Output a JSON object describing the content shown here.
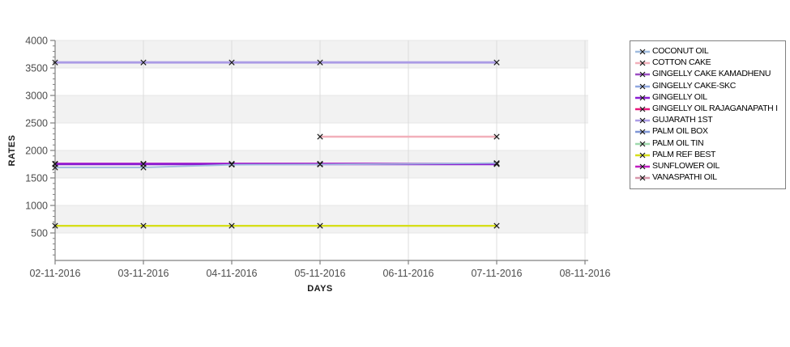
{
  "page": {
    "background": "#ffffff"
  },
  "chart_data": {
    "type": "line",
    "title": "",
    "xlabel": "DAYS",
    "ylabel": "RATES",
    "x_tick_labels": [
      "02-11-2016",
      "03-11-2016",
      "04-11-2016",
      "05-11-2016",
      "06-11-2016",
      "07-11-2016",
      "08-11-2016"
    ],
    "y_tick_labels": [
      "500",
      "1000",
      "1500",
      "2000",
      "2500",
      "3000",
      "3500",
      "4000"
    ],
    "ylim": [
      0,
      4000
    ],
    "y_major_step": 500,
    "y_minor_step": 100,
    "grid": "vertical day gridlines, alternating horizontal gray bands every 500",
    "band_fill": "#f2f2f2",
    "gridline_color": "#dcdcdc",
    "axis_color": "#808080",
    "tick_label_color": "#4d4d4d",
    "marker": "black-x",
    "legend_position": "right",
    "series": [
      {
        "name": "COCONUT OIL",
        "color": "#a0bcdf",
        "x": [
          "02-11-2016",
          "03-11-2016",
          "04-11-2016",
          "05-11-2016",
          "07-11-2016"
        ],
        "values": [
          1690,
          1690,
          1740,
          1745,
          1770
        ],
        "visible": true
      },
      {
        "name": "COTTON CAKE",
        "color": "#f2b0ba",
        "x": [
          "05-11-2016",
          "07-11-2016"
        ],
        "values": [
          2250,
          2250
        ],
        "visible": true
      },
      {
        "name": "GINGELLY CAKE KAMADHENU",
        "color": "#9b4ec2",
        "x": [],
        "values": null,
        "visible": false
      },
      {
        "name": "GINGELLY CAKE-SKC",
        "color": "#8fa7e0",
        "x": [],
        "values": null,
        "visible": false
      },
      {
        "name": "GINGELLY OIL",
        "color": "#8a1ed2",
        "x": [
          "02-11-2016",
          "03-11-2016",
          "04-11-2016",
          "05-11-2016",
          "07-11-2016"
        ],
        "values": [
          1750,
          1750,
          1750,
          1750,
          1750
        ],
        "visible": true
      },
      {
        "name": "GINGELLY OIL RAJAGANAPATH I",
        "color": "#e8197c",
        "x": [],
        "values": null,
        "visible": false
      },
      {
        "name": "GUJARATH 1ST",
        "color": "#ab9ce6",
        "x": [
          "02-11-2016",
          "03-11-2016",
          "04-11-2016",
          "05-11-2016",
          "07-11-2016"
        ],
        "values": [
          3600,
          3600,
          3600,
          3600,
          3600
        ],
        "visible": true
      },
      {
        "name": "PALM OIL BOX",
        "color": "#7f96d6",
        "x": [],
        "values": null,
        "visible": false
      },
      {
        "name": "PALM OIL TIN",
        "color": "#9fd9ad",
        "x": [],
        "values": null,
        "visible": false
      },
      {
        "name": "PALM REF BEST",
        "color": "#d6de1a",
        "x": [
          "02-11-2016",
          "03-11-2016",
          "04-11-2016",
          "05-11-2016",
          "07-11-2016"
        ],
        "values": [
          630,
          630,
          630,
          630,
          630
        ],
        "visible": true
      },
      {
        "name": "SUNFLOWER OIL",
        "color": "#c01ec0",
        "x": [
          "02-11-2016",
          "03-11-2016",
          "04-11-2016",
          "05-11-2016",
          "07-11-2016"
        ],
        "values": [
          1760,
          1760,
          1760,
          1760,
          1760
        ],
        "visible": true
      },
      {
        "name": "VANASPATHI OIL",
        "color": "#d898ab",
        "x": [],
        "values": null,
        "visible": false
      }
    ]
  }
}
